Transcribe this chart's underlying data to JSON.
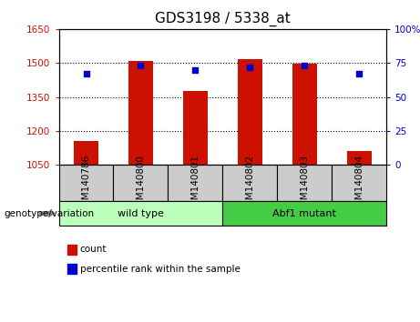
{
  "title": "GDS3198 / 5338_at",
  "categories": [
    "GSM140786",
    "GSM140800",
    "GSM140801",
    "GSM140802",
    "GSM140803",
    "GSM140804"
  ],
  "bar_values": [
    1155,
    1510,
    1375,
    1515,
    1495,
    1110
  ],
  "percentile_values": [
    67,
    73,
    70,
    72,
    73,
    67
  ],
  "ylim_left": [
    1050,
    1650
  ],
  "ylim_right": [
    0,
    100
  ],
  "yticks_left": [
    1050,
    1200,
    1350,
    1500,
    1650
  ],
  "yticks_right": [
    0,
    25,
    50,
    75,
    100
  ],
  "bar_color": "#cc1100",
  "dot_color": "#0000cc",
  "groups": [
    {
      "label": "wild type",
      "indices": [
        0,
        1,
        2
      ],
      "color": "#bbffbb"
    },
    {
      "label": "Abf1 mutant",
      "indices": [
        3,
        4,
        5
      ],
      "color": "#44cc44"
    }
  ],
  "group_label": "genotype/variation",
  "legend_count_label": "count",
  "legend_pct_label": "percentile rank within the sample",
  "bar_width": 0.45,
  "figsize": [
    4.61,
    3.54
  ],
  "dpi": 100,
  "plot_bg_color": "#ffffff",
  "tick_bg_color": "#cccccc",
  "title_fontsize": 11,
  "tick_fontsize": 7.5,
  "label_fontsize": 8
}
